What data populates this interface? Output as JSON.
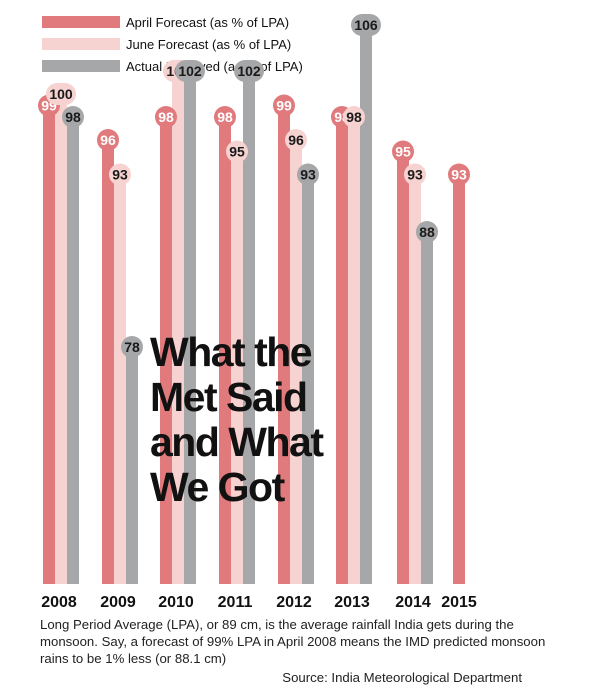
{
  "chart_data": {
    "type": "bar",
    "title": "What the Met Said and What We Got",
    "categories": [
      "2008",
      "2009",
      "2010",
      "2011",
      "2012",
      "2013",
      "2014",
      "2015"
    ],
    "series": [
      {
        "name": "April Forecast (as % of LPA)",
        "values": [
          99,
          96,
          98,
          98,
          99,
          98,
          95,
          93
        ]
      },
      {
        "name": "June Forecast (as % of LPA)",
        "values": [
          100,
          93,
          102,
          95,
          96,
          98,
          93,
          null
        ]
      },
      {
        "name": "Actual Received (as % of LPA)",
        "values": [
          98,
          78,
          102,
          102,
          93,
          106,
          88,
          null
        ]
      }
    ],
    "legend_position": "top-left",
    "grid": false
  },
  "headline_lines": [
    "What the",
    "Met Said",
    "and What",
    "We Got"
  ],
  "note": "Long Period Average (LPA), or 89 cm, is the average rainfall India gets during the monsoon. Say, a forecast of 99% LPA in April 2008 means the IMD predicted monsoon rains to be 1% less (or 88.1 cm)",
  "source": "Source: India Meteorological Department",
  "colors": {
    "april": "#e07a7d",
    "june": "#f6d2d0",
    "actual": "#a6a7a9",
    "bubble_white": "#ffffff"
  }
}
